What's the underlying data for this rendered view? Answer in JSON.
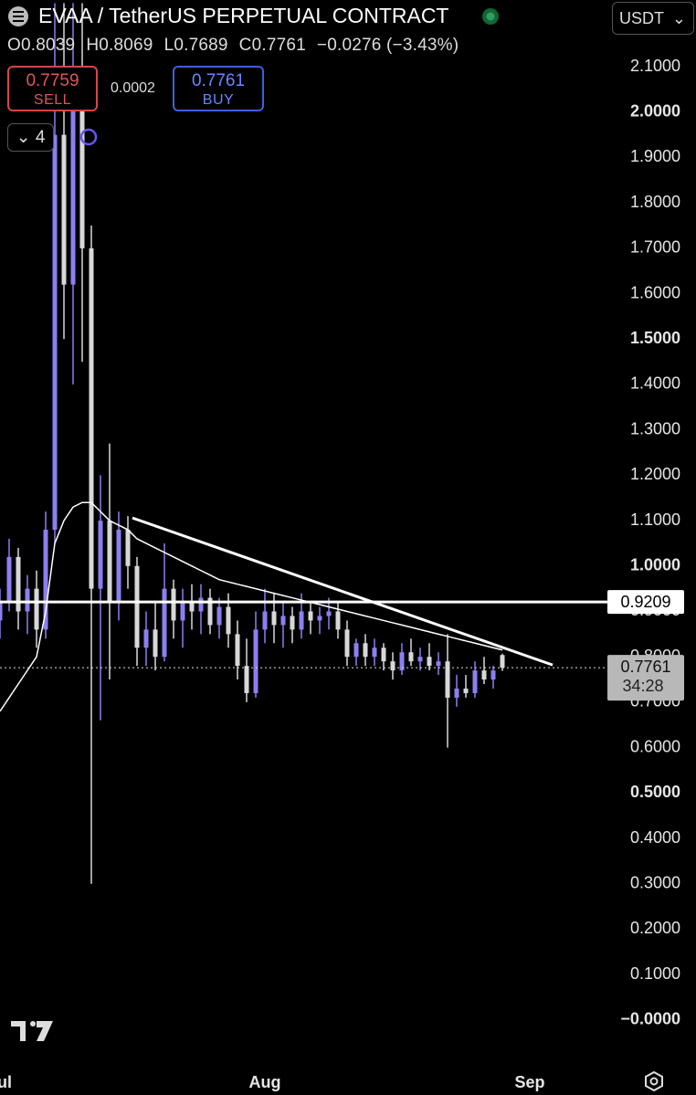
{
  "header": {
    "title": "EVAA / TetherUS PERPETUAL CONTRACT",
    "quote": "USDT",
    "ohlc": [
      {
        "key": "O",
        "value": "0.8039"
      },
      {
        "key": "H",
        "value": "0.8069"
      },
      {
        "key": "L",
        "value": "0.7689"
      },
      {
        "key": "C",
        "value": "0.7761"
      }
    ],
    "change": "−0.0276 (−3.43%)",
    "sell": {
      "price": "0.7759",
      "label": "SELL"
    },
    "spread": "0.0002",
    "buy": {
      "price": "0.7761",
      "label": "BUY"
    },
    "interval": "4"
  },
  "chart_data": {
    "type": "candlestick",
    "categories": [
      "Jul",
      null,
      null,
      null,
      null,
      null,
      null,
      null,
      null,
      null,
      null,
      null,
      null,
      null,
      null,
      null,
      null,
      null,
      null,
      null,
      null,
      null,
      null,
      null,
      null,
      null,
      null,
      null,
      null,
      "Aug",
      null,
      null,
      null,
      null,
      null,
      null,
      null,
      null,
      null,
      null,
      null,
      null,
      null,
      null,
      null,
      null,
      null,
      null,
      null,
      null,
      null,
      null,
      null,
      null,
      null,
      null,
      null,
      null,
      "Sep",
      null,
      null,
      null,
      null,
      null,
      null,
      null
    ],
    "open": [
      0.88,
      0.92,
      1.02,
      0.9,
      0.95,
      0.86,
      1.08,
      1.95,
      1.62,
      2.05,
      1.7,
      0.95,
      1.1,
      0.92,
      1.08,
      1.0,
      0.82,
      0.86,
      0.8,
      0.95,
      0.88,
      0.92,
      0.9,
      0.93,
      0.87,
      0.91,
      0.85,
      0.78,
      0.72,
      0.86,
      0.9,
      0.87,
      0.89,
      0.86,
      0.9,
      0.88,
      0.89,
      0.9,
      0.86,
      0.8,
      0.83,
      0.8,
      0.82,
      0.79,
      0.77,
      0.81,
      0.79,
      0.8,
      0.78,
      0.79,
      0.71,
      0.73,
      0.72,
      0.77,
      0.75,
      0.8039,
      null,
      null,
      null,
      null,
      null,
      null,
      null,
      null,
      null,
      null
    ],
    "high": [
      0.95,
      1.06,
      1.04,
      0.98,
      0.99,
      1.12,
      2.24,
      2.24,
      2.24,
      2.24,
      1.75,
      1.2,
      1.27,
      1.12,
      1.11,
      1.02,
      0.9,
      0.92,
      1.05,
      0.97,
      0.95,
      0.96,
      0.96,
      0.95,
      0.93,
      0.94,
      0.88,
      0.84,
      0.9,
      0.95,
      0.94,
      0.92,
      0.91,
      0.94,
      0.92,
      0.91,
      0.93,
      0.92,
      0.88,
      0.84,
      0.85,
      0.84,
      0.83,
      0.81,
      0.83,
      0.84,
      0.82,
      0.83,
      0.81,
      0.85,
      0.76,
      0.76,
      0.79,
      0.8,
      0.78,
      0.8069,
      null,
      null,
      null,
      null,
      null,
      null,
      null,
      null,
      null,
      null
    ],
    "low": [
      0.84,
      0.9,
      0.86,
      0.85,
      0.82,
      0.84,
      1.05,
      1.5,
      1.4,
      1.45,
      0.3,
      0.66,
      0.75,
      0.88,
      0.95,
      0.78,
      0.78,
      0.77,
      0.79,
      0.84,
      0.82,
      0.86,
      0.85,
      0.85,
      0.84,
      0.82,
      0.75,
      0.7,
      0.71,
      0.83,
      0.83,
      0.82,
      0.83,
      0.84,
      0.85,
      0.85,
      0.86,
      0.84,
      0.78,
      0.78,
      0.78,
      0.78,
      0.77,
      0.75,
      0.76,
      0.78,
      0.77,
      0.77,
      0.76,
      0.6,
      0.69,
      0.71,
      0.71,
      0.74,
      0.73,
      0.7689,
      null,
      null,
      null,
      null,
      null,
      null,
      null,
      null,
      null,
      null
    ],
    "close": [
      0.92,
      1.02,
      0.9,
      0.95,
      0.86,
      1.08,
      1.95,
      1.62,
      2.05,
      1.7,
      0.95,
      1.1,
      0.92,
      1.08,
      1.0,
      0.82,
      0.86,
      0.8,
      0.95,
      0.88,
      0.92,
      0.9,
      0.93,
      0.87,
      0.91,
      0.85,
      0.78,
      0.72,
      0.86,
      0.9,
      0.87,
      0.89,
      0.86,
      0.9,
      0.88,
      0.89,
      0.9,
      0.86,
      0.8,
      0.83,
      0.8,
      0.82,
      0.79,
      0.77,
      0.81,
      0.79,
      0.8,
      0.78,
      0.79,
      0.71,
      0.73,
      0.72,
      0.77,
      0.75,
      0.77,
      0.7761,
      null,
      null,
      null,
      null,
      null,
      null,
      null,
      null,
      null,
      null
    ],
    "up_color": "#8c7ff0",
    "down_color": "#d8d8d8",
    "ma": {
      "color": "#ffffff",
      "values": [
        0.68,
        0.71,
        0.74,
        0.77,
        0.8,
        0.9,
        1.05,
        1.1,
        1.13,
        1.14,
        1.14,
        1.12,
        1.1,
        1.09,
        1.08,
        1.06,
        1.05,
        1.04,
        1.03,
        1.02,
        1.01,
        1.0,
        0.99,
        0.98,
        0.97,
        0.965,
        0.96,
        0.955,
        0.95,
        0.945,
        0.94,
        0.935,
        0.93,
        0.925,
        0.92,
        0.915,
        0.91,
        0.905,
        0.9,
        0.895,
        0.89,
        0.885,
        0.88,
        0.875,
        0.87,
        0.865,
        0.86,
        0.855,
        0.85,
        0.845,
        0.84,
        0.835,
        0.83,
        0.825,
        0.82,
        0.815,
        null,
        null,
        null,
        null,
        null,
        null,
        null,
        null,
        null,
        null
      ]
    },
    "trendline": {
      "x": [
        14.5,
        60.5
      ],
      "y": [
        1.106,
        0.782
      ]
    },
    "hline": {
      "value": 0.9209,
      "label": "0.9209"
    },
    "last_price": {
      "value": 0.7761,
      "label": "0.7761",
      "countdown": "34:28"
    },
    "ylim": [
      -0.107,
      2.247
    ],
    "yticks": [
      {
        "value": 2.1,
        "label": "2.1000"
      },
      {
        "value": 2.0,
        "label": "2.0000"
      },
      {
        "value": 1.9,
        "label": "1.9000"
      },
      {
        "value": 1.8,
        "label": "1.8000"
      },
      {
        "value": 1.7,
        "label": "1.7000"
      },
      {
        "value": 1.6,
        "label": "1.6000"
      },
      {
        "value": 1.5,
        "label": "1.5000"
      },
      {
        "value": 1.4,
        "label": "1.4000"
      },
      {
        "value": 1.3,
        "label": "1.3000"
      },
      {
        "value": 1.2,
        "label": "1.2000"
      },
      {
        "value": 1.1,
        "label": "1.1000"
      },
      {
        "value": 1.0,
        "label": "1.0000"
      },
      {
        "value": 0.9,
        "label": "0.9000"
      },
      {
        "value": 0.8,
        "label": "0.8000"
      },
      {
        "value": 0.7,
        "label": "0.7000"
      },
      {
        "value": 0.6,
        "label": "0.6000"
      },
      {
        "value": 0.5,
        "label": "0.5000"
      },
      {
        "value": 0.4,
        "label": "0.4000"
      },
      {
        "value": 0.3,
        "label": "0.3000"
      },
      {
        "value": 0.2,
        "label": "0.2000"
      },
      {
        "value": 0.1,
        "label": "0.1000"
      },
      {
        "value": 0,
        "label": "−0.0000"
      }
    ]
  }
}
